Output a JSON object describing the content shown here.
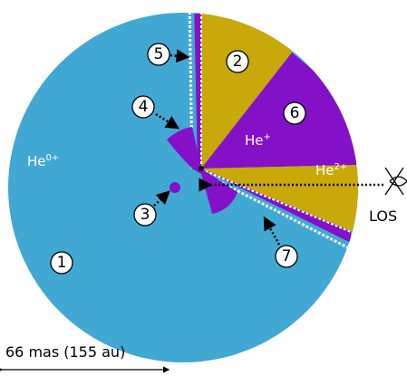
{
  "labels": {
    "markers": [
      "1",
      "2",
      "3",
      "4",
      "5",
      "6",
      "7"
    ],
    "he0": {
      "base": "He",
      "sup": "0+"
    },
    "he1": {
      "base": "He",
      "sup": "+"
    },
    "he2": {
      "base": "He",
      "sup": "2+"
    },
    "los": "LOS",
    "scale": "66 mas (155 au)"
  }
}
